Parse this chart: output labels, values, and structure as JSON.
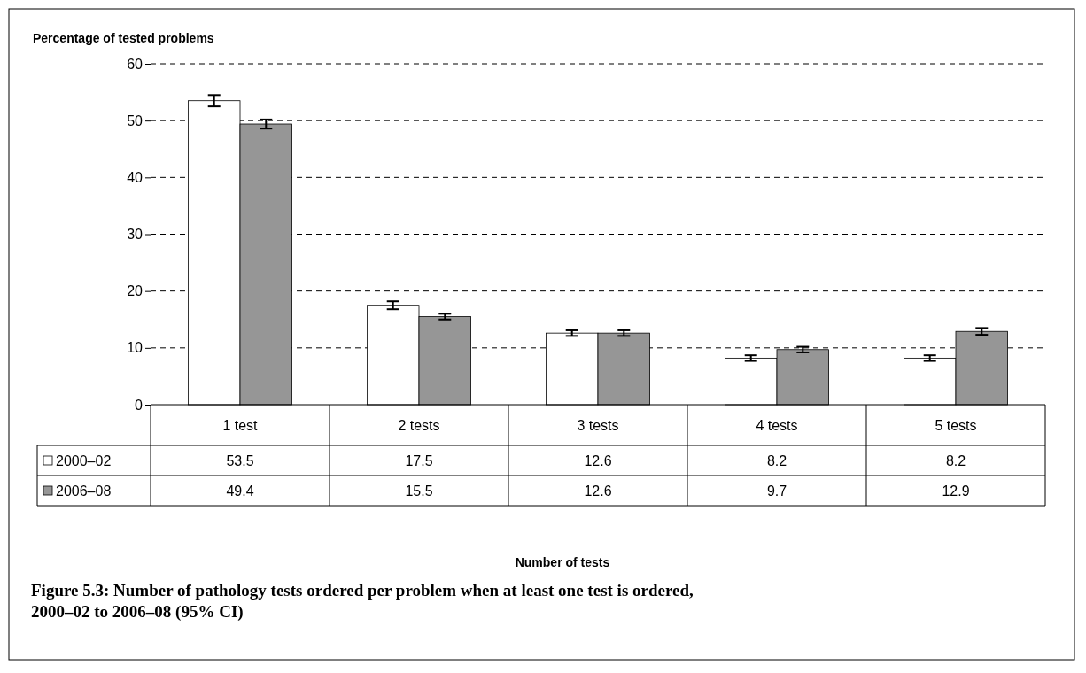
{
  "chart_data": {
    "type": "bar",
    "title": "Figure 5.3: Number of pathology tests ordered per problem when at least one test is ordered, 2000–02 to 2006–08 (95% CI)",
    "annotations": [
      "Number of tests"
    ],
    "ylabel": "Percentage of tested problems",
    "categories": [
      "1 test",
      "2 tests",
      "3 tests",
      "4 tests",
      "5 tests"
    ],
    "series": [
      {
        "name": "2000–02",
        "color": "#ffffff",
        "values": [
          53.5,
          17.5,
          12.6,
          8.2,
          8.2
        ],
        "errors": [
          1.0,
          0.7,
          0.5,
          0.5,
          0.5
        ]
      },
      {
        "name": "2006–08",
        "color": "#969696",
        "values": [
          49.4,
          15.5,
          12.6,
          9.7,
          12.9
        ],
        "errors": [
          0.8,
          0.5,
          0.5,
          0.5,
          0.6
        ]
      }
    ],
    "ylim": [
      0,
      60
    ],
    "yticks": [
      0,
      10,
      20,
      30,
      40,
      50,
      60
    ],
    "grid": "y",
    "legend": "bottom left",
    "data_labels": true
  }
}
